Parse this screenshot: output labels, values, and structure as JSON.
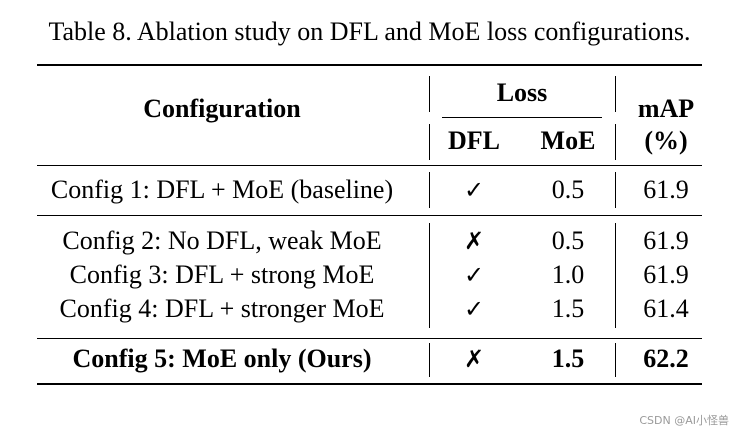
{
  "caption": "Table 8. Ablation study on DFL and MoE loss configurations.",
  "header": {
    "configuration": "Configuration",
    "loss_group": "Loss",
    "dfl": "DFL",
    "moe": "MoE",
    "map_line1": "mAP",
    "map_line2": "(%)"
  },
  "rows": [
    {
      "config": "Config 1: DFL + MoE (baseline)",
      "dfl": "✓",
      "moe": "0.5",
      "map": "61.9",
      "bold": false
    },
    {
      "config": "Config 2: No DFL, weak MoE",
      "dfl": "✗",
      "moe": "0.5",
      "map": "61.9",
      "bold": false
    },
    {
      "config": "Config 3: DFL + strong MoE",
      "dfl": "✓",
      "moe": "1.0",
      "map": "61.9",
      "bold": false
    },
    {
      "config": "Config 4: DFL + stronger MoE",
      "dfl": "✓",
      "moe": "1.5",
      "map": "61.4",
      "bold": false
    },
    {
      "config": "Config 5: MoE only (Ours)",
      "dfl": "✗",
      "moe": "1.5",
      "map": "62.2",
      "bold": true
    }
  ],
  "watermark": "CSDN @AI小怪兽"
}
